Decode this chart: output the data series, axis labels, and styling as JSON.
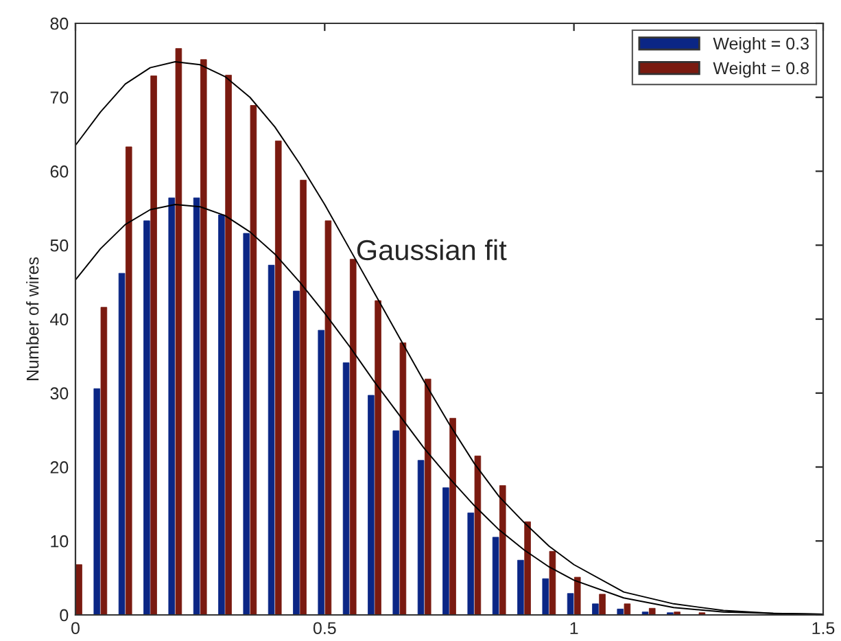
{
  "chart_data": {
    "type": "bar",
    "ylabel": "Number of wires",
    "annotations": [
      "Gaussian fit"
    ],
    "xlim": [
      0,
      1.5
    ],
    "xticks": [
      0,
      0.5,
      1,
      1.5
    ],
    "ylim": [
      0,
      80
    ],
    "yticks": [
      0,
      10,
      20,
      30,
      40,
      50,
      60,
      70,
      80
    ],
    "legend": "top right",
    "grid": false,
    "series": [
      {
        "name": "Weight = 0.3",
        "color": "#0b2685",
        "x": [
          0,
          0.05,
          0.1,
          0.15,
          0.2,
          0.25,
          0.3,
          0.35,
          0.4,
          0.45,
          0.5,
          0.55,
          0.6,
          0.65,
          0.7,
          0.75,
          0.8,
          0.85,
          0.9,
          0.95,
          1.0,
          1.05,
          1.1,
          1.15,
          1.2,
          1.25
        ],
        "values": [
          0,
          30.6,
          46.2,
          53.3,
          56.4,
          56.4,
          54.1,
          51.6,
          47.3,
          43.8,
          38.5,
          34.1,
          29.7,
          24.9,
          20.9,
          17.2,
          13.8,
          10.5,
          7.4,
          4.9,
          2.9,
          1.5,
          0.8,
          0.4,
          0.3,
          0
        ]
      },
      {
        "name": "Weight = 0.8",
        "color": "#7a1a10",
        "x": [
          0,
          0.05,
          0.1,
          0.15,
          0.2,
          0.25,
          0.3,
          0.35,
          0.4,
          0.45,
          0.5,
          0.55,
          0.6,
          0.65,
          0.7,
          0.75,
          0.8,
          0.85,
          0.9,
          0.95,
          1.0,
          1.05,
          1.1,
          1.15,
          1.2,
          1.25
        ],
        "values": [
          6.8,
          41.6,
          63.3,
          72.9,
          76.6,
          75.1,
          73.0,
          68.9,
          64.1,
          58.8,
          53.3,
          48.1,
          42.5,
          36.8,
          31.9,
          26.6,
          21.5,
          17.5,
          12.6,
          8.6,
          5.1,
          2.8,
          1.5,
          0.9,
          0.4,
          0.3
        ]
      },
      {
        "type": "line",
        "color": "#000000",
        "x": [
          0,
          0.05,
          0.1,
          0.15,
          0.2,
          0.25,
          0.3,
          0.35,
          0.4,
          0.45,
          0.5,
          0.55,
          0.6,
          0.65,
          0.7,
          0.75,
          0.8,
          0.85,
          0.9,
          0.95,
          1.0,
          1.1,
          1.2,
          1.3,
          1.4,
          1.5
        ],
        "values": [
          63.5,
          68,
          71.8,
          74,
          74.8,
          74.4,
          72.8,
          70,
          66,
          61,
          55.5,
          49.5,
          43.5,
          37.5,
          31.5,
          25.8,
          20.5,
          16,
          12.5,
          9.3,
          6.8,
          3.1,
          1.5,
          0.6,
          0.2,
          0.1
        ]
      },
      {
        "type": "line",
        "color": "#000000",
        "x": [
          0,
          0.05,
          0.1,
          0.15,
          0.2,
          0.25,
          0.3,
          0.35,
          0.4,
          0.45,
          0.5,
          0.55,
          0.6,
          0.65,
          0.7,
          0.75,
          0.8,
          0.85,
          0.9,
          0.95,
          1.0,
          1.1,
          1.2,
          1.3,
          1.4,
          1.5
        ],
        "values": [
          45.3,
          49.5,
          52.8,
          54.8,
          55.5,
          55.2,
          54,
          51.8,
          48.8,
          45,
          40.8,
          36.3,
          31.5,
          27,
          22.5,
          18.5,
          14.8,
          11.5,
          8.8,
          6.5,
          4.7,
          2.3,
          1.0,
          0.4,
          0.2,
          0.1
        ]
      }
    ]
  }
}
